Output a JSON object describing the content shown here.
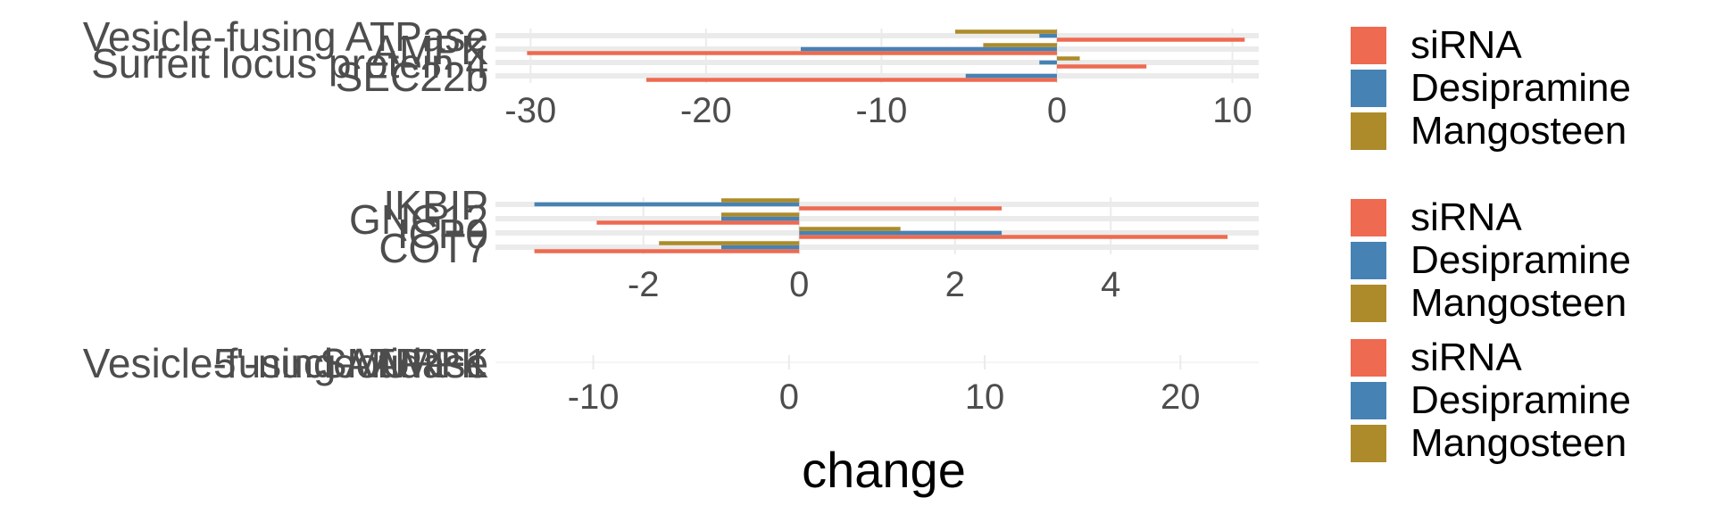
{
  "colors": {
    "siRNA": "#EE6A50",
    "Desipramine": "#4682B4",
    "Mangosteen": "#AD8B2A",
    "grid": "#EBEBEB",
    "axis_text": "#4D4D4D",
    "title_text": "#000000"
  },
  "xlabel": "change",
  "chart_data": [
    {
      "type": "bar",
      "orientation": "horizontal",
      "grid": true,
      "legend_position": "right",
      "xlim": [
        -32,
        11.5
      ],
      "xticks": [
        -30,
        -20,
        -10,
        0,
        10
      ],
      "categories": [
        "Vesicle-fusing ATPase",
        "AMPK",
        "Surfeit locus protein 4",
        "SEC22b"
      ],
      "series": [
        {
          "name": "siRNA",
          "values": [
            10.7,
            -30.2,
            5.1,
            -23.4
          ]
        },
        {
          "name": "Desipramine",
          "values": [
            -1.0,
            -14.6,
            -1.0,
            -5.2
          ]
        },
        {
          "name": "Mangosteen",
          "values": [
            -5.8,
            -4.2,
            1.3,
            0
          ]
        }
      ],
      "legend": [
        "siRNA",
        "Desipramine",
        "Mangosteen"
      ]
    },
    {
      "type": "bar",
      "orientation": "horizontal",
      "grid": true,
      "legend_position": "right",
      "xlim": [
        -3.9,
        5.9
      ],
      "xticks": [
        -2,
        0,
        2,
        4
      ],
      "categories": [
        "IKBIP",
        "GNG12",
        "ICP0",
        "COT7"
      ],
      "series": [
        {
          "name": "siRNA",
          "values": [
            2.6,
            -2.6,
            5.5,
            -3.4
          ]
        },
        {
          "name": "Desipramine",
          "values": [
            -3.4,
            -1.0,
            2.6,
            -1.0
          ]
        },
        {
          "name": "Mangosteen",
          "values": [
            -1.0,
            -1.0,
            1.3,
            -1.8
          ]
        }
      ],
      "legend": [
        "siRNA",
        "Desipramine",
        "Mangosteen"
      ]
    },
    {
      "type": "bar",
      "orientation": "horizontal",
      "grid": true,
      "legend_position": "right",
      "xlim": [
        -15,
        24
      ],
      "xticks": [
        -10,
        0,
        10,
        20
      ],
      "categories": [
        "Vesicle-fusing ATPase",
        "5'-nucleotidase",
        "SMURF1",
        "AMPK"
      ],
      "series": [
        {
          "name": "siRNA",
          "values": [
            0,
            0,
            0,
            0
          ]
        },
        {
          "name": "Desipramine",
          "values": [
            0,
            0,
            0,
            0
          ]
        },
        {
          "name": "Mangosteen",
          "values": [
            0,
            0,
            0,
            0
          ]
        }
      ],
      "legend": [
        "siRNA",
        "Desipramine",
        "Mangosteen"
      ]
    }
  ]
}
